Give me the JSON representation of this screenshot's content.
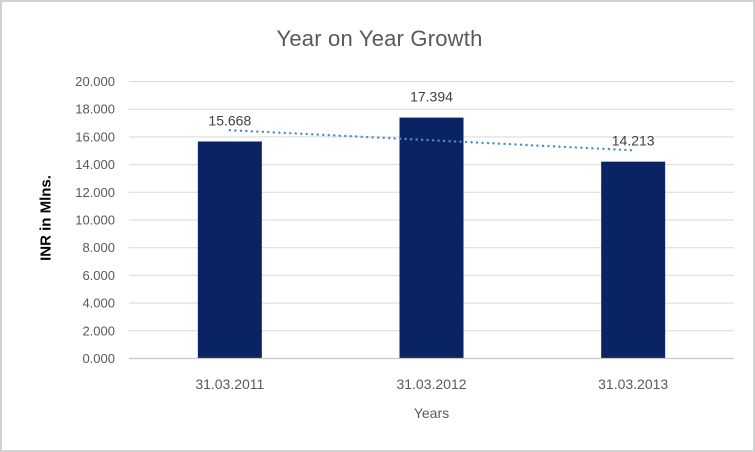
{
  "chart_data": {
    "type": "bar",
    "title": "Year on Year Growth",
    "categories": [
      "31.03.2011",
      "31.03.2012",
      "31.03.2013"
    ],
    "values": [
      15.668,
      17.394,
      14.213
    ],
    "data_labels": [
      "15.668",
      "17.394",
      "14.213"
    ],
    "xlabel": "Years",
    "ylabel": "INR in Mlns.",
    "ylim": [
      0,
      20
    ],
    "ytick_step": 2,
    "ytick_decimals": 3,
    "ytick_labels": [
      "0.000",
      "2.000",
      "4.000",
      "6.000",
      "8.000",
      "10.000",
      "12.000",
      "14.000",
      "16.000",
      "18.000",
      "20.000"
    ],
    "grid": true,
    "legend": "none",
    "trendline": {
      "type": "linear",
      "style": "dotted",
      "color": "#508cc8"
    },
    "colors": {
      "bar": "#0a2463",
      "title_text": "#595959",
      "tick_text": "#595959",
      "data_label_text": "#404040",
      "gridline": "#d9d9d9",
      "axis_line": "#c9c9c9",
      "frame_border": "#d2d2d2",
      "background": "#ffffff"
    }
  }
}
